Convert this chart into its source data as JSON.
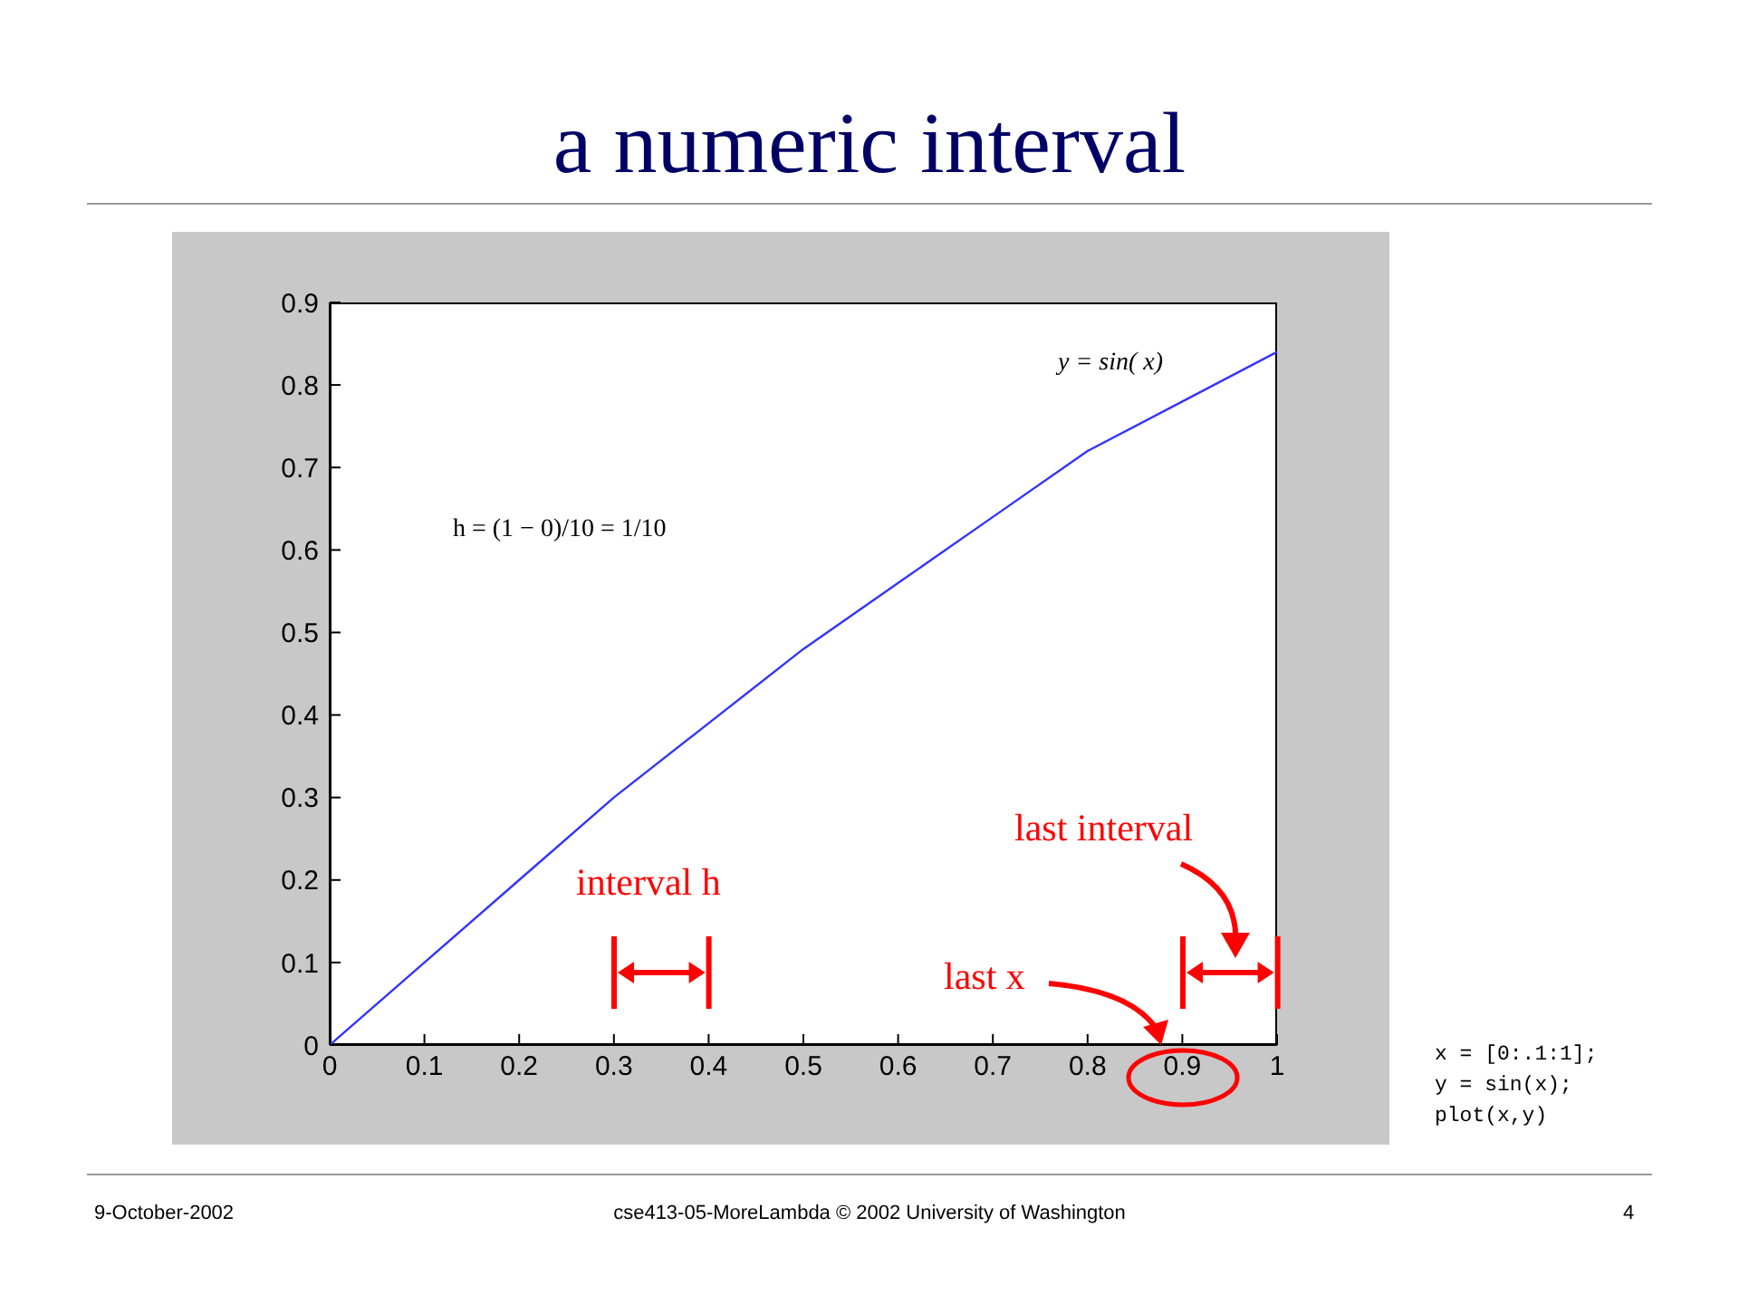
{
  "chart_data": {
    "type": "line",
    "title": "a numeric interval",
    "x": [
      0,
      0.1,
      0.2,
      0.3,
      0.4,
      0.5,
      0.6,
      0.7,
      0.8,
      0.9,
      1
    ],
    "series": [
      {
        "color": "#3333ff",
        "values": [
          0,
          0.1,
          0.2,
          0.3,
          0.39,
          0.48,
          0.56,
          0.64,
          0.72,
          0.78,
          0.84
        ]
      }
    ],
    "xlim": [
      0,
      1
    ],
    "xticks": [
      0,
      0.1,
      0.2,
      0.3,
      0.4,
      0.5,
      0.6,
      0.7,
      0.8,
      0.9,
      1
    ],
    "ylim": [
      0,
      0.9
    ],
    "yticks": [
      0,
      0.1,
      0.2,
      0.3,
      0.4,
      0.5,
      0.6,
      0.7,
      0.8,
      0.9
    ],
    "marker": "none",
    "line_style": "solid",
    "annotations": [
      "y = sin( x)",
      "h = (1 − 0)/10 = 1/10",
      "interval h",
      "last interval",
      "last x",
      "x = [0:.1:1];\ny = sin(x);\nplot(x,y)",
      "9-October-2002",
      "cse413-05-MoreLambda © 2002 University of Washington",
      "4"
    ]
  }
}
